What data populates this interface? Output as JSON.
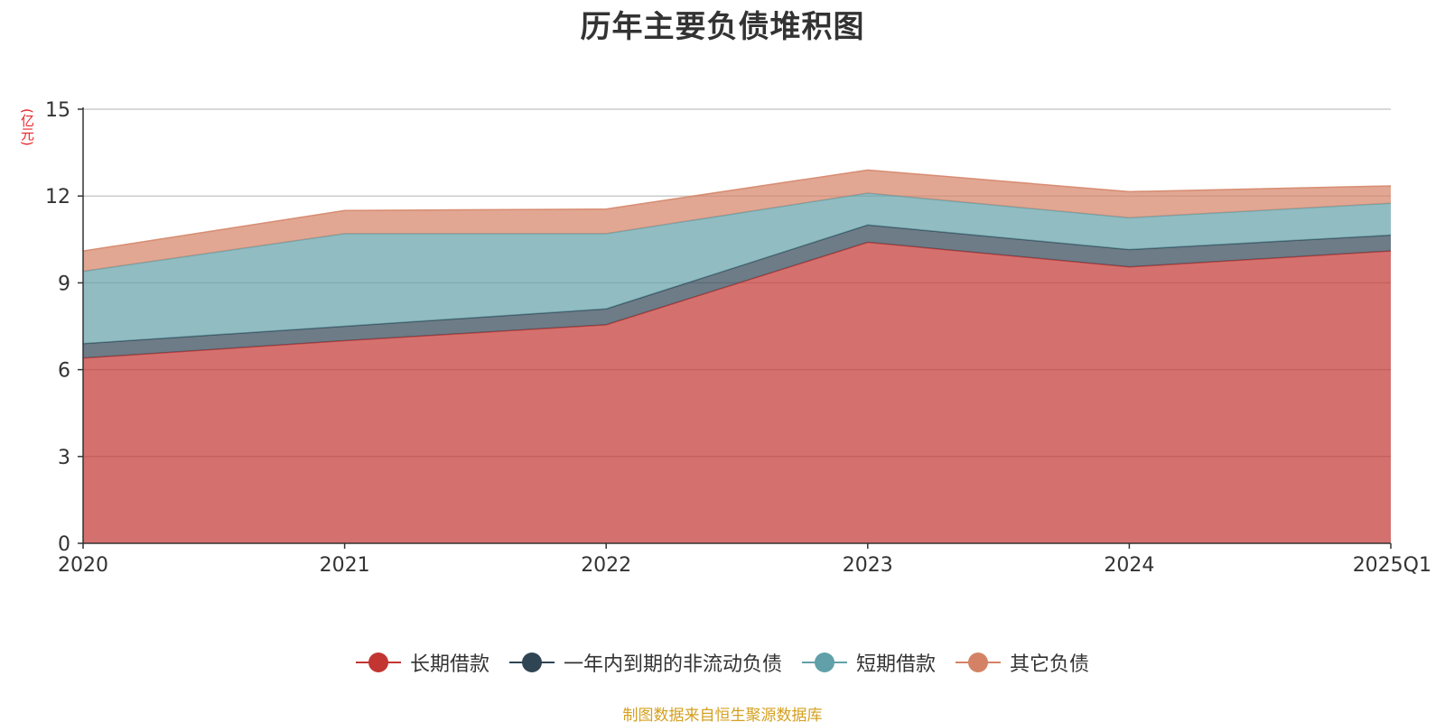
{
  "chart_data": {
    "type": "area",
    "stacked": true,
    "title": "历年主要负债堆积图",
    "unit_label": "(亿元)",
    "categories": [
      "2020",
      "2021",
      "2022",
      "2023",
      "2024",
      "2025Q1"
    ],
    "ylim": [
      0,
      15
    ],
    "yticks": [
      0,
      3,
      6,
      9,
      12,
      15
    ],
    "grid": true,
    "legend_position": "bottom",
    "series": [
      {
        "name": "长期借款",
        "color": "#c23531",
        "values": [
          6.4,
          7.0,
          7.55,
          10.4,
          9.55,
          10.1
        ]
      },
      {
        "name": "一年内到期的非流动负债",
        "color": "#2f4554",
        "values": [
          0.5,
          0.5,
          0.55,
          0.6,
          0.6,
          0.55
        ]
      },
      {
        "name": "短期借款",
        "color": "#61a0a8",
        "values": [
          2.5,
          3.2,
          2.6,
          1.1,
          1.1,
          1.1
        ]
      },
      {
        "name": "其它负债",
        "color": "#d48265",
        "values": [
          0.7,
          0.8,
          0.85,
          0.8,
          0.9,
          0.6
        ]
      }
    ],
    "source_note": "制图数据来自恒生聚源数据库"
  }
}
